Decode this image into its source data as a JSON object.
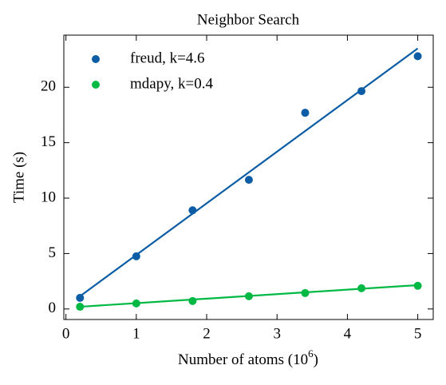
{
  "chart_data": {
    "type": "scatter",
    "title": "Neighbor Search",
    "xlabel": [
      "Number of atoms (10",
      "6",
      ")"
    ],
    "ylabel": "Time (s)",
    "x": [
      0.2,
      1,
      1.8,
      2.6,
      3.4,
      4.2,
      5
    ],
    "fit_x": [
      0.2,
      5
    ],
    "series": [
      {
        "name": "freud, k=4.6",
        "color": "#0c5da5",
        "values": [
          1.0,
          4.75,
          8.9,
          11.65,
          17.7,
          19.65,
          22.8
        ],
        "fit": [
          1.15,
          23.5
        ]
      },
      {
        "name": "mdapy, k=0.4",
        "color": "#00b945",
        "values": [
          0.2,
          0.5,
          0.72,
          1.15,
          1.44,
          1.87,
          2.09
        ],
        "fit": [
          0.2,
          2.15
        ]
      }
    ],
    "xlim": [
      -0.03,
      5.22
    ],
    "ylim": [
      -0.95,
      24.7
    ],
    "xticks": [
      0,
      1,
      2,
      3,
      4,
      5
    ],
    "yticks": [
      0,
      5,
      10,
      15,
      20
    ],
    "legend": "upper left",
    "grid": false
  }
}
